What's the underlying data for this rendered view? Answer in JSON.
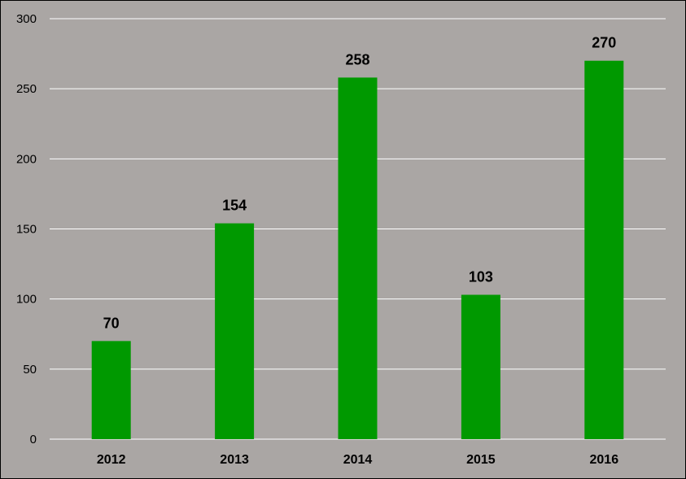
{
  "chart_data": {
    "type": "bar",
    "categories": [
      "2012",
      "2013",
      "2014",
      "2015",
      "2016"
    ],
    "values": [
      70,
      154,
      258,
      103,
      270
    ],
    "data_labels": [
      "70",
      "154",
      "258",
      "103",
      "270"
    ],
    "yticks": [
      "0",
      "50",
      "100",
      "150",
      "200",
      "250",
      "300"
    ],
    "ylim": [
      0,
      300
    ],
    "grid": true,
    "legend": "none",
    "title": "",
    "xlabel": "",
    "ylabel": "",
    "colors": {
      "bar": "#009900",
      "plot_background": "#aaa6a4",
      "gridline": "#ffffff",
      "border": "#000000"
    }
  }
}
